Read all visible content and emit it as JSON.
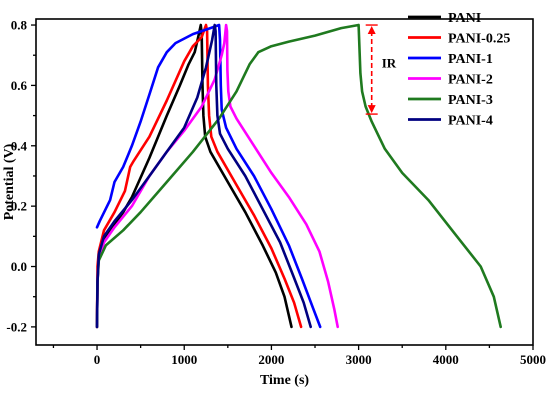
{
  "chart_data": {
    "type": "line",
    "title": "",
    "xlabel": "Time (s)",
    "ylabel": "Potential (V)",
    "xlim": [
      -700,
      5000
    ],
    "ylim": [
      -0.26,
      0.82
    ],
    "xticks": [
      0,
      1000,
      2000,
      3000,
      4000,
      5000
    ],
    "yticks": [
      -0.2,
      0.0,
      0.2,
      0.4,
      0.6,
      0.8
    ],
    "xtick_labels": [
      "0",
      "1000",
      "2000",
      "3000",
      "4000",
      "5000"
    ],
    "ytick_labels": [
      "-0.2",
      "0.0",
      "0.2",
      "0.4",
      "0.6",
      "0.8"
    ],
    "grid": false,
    "legend_position": "top-right",
    "series": [
      {
        "name": "PANI",
        "color": "#000000",
        "points": [
          [
            0,
            -0.2
          ],
          [
            5,
            -0.05
          ],
          [
            15,
            0.02
          ],
          [
            50,
            0.07
          ],
          [
            150,
            0.12
          ],
          [
            300,
            0.18
          ],
          [
            400,
            0.23
          ],
          [
            600,
            0.36
          ],
          [
            800,
            0.5
          ],
          [
            950,
            0.6
          ],
          [
            1050,
            0.67
          ],
          [
            1120,
            0.71
          ],
          [
            1160,
            0.76
          ],
          [
            1190,
            0.8
          ],
          [
            1200,
            0.77
          ],
          [
            1210,
            0.6
          ],
          [
            1220,
            0.5
          ],
          [
            1240,
            0.43
          ],
          [
            1300,
            0.38
          ],
          [
            1500,
            0.28
          ],
          [
            1700,
            0.18
          ],
          [
            1900,
            0.07
          ],
          [
            2050,
            -0.02
          ],
          [
            2150,
            -0.1
          ],
          [
            2230,
            -0.2
          ]
        ]
      },
      {
        "name": "PANI-0.25",
        "color": "#ff0000",
        "points": [
          [
            0,
            -0.2
          ],
          [
            5,
            0.0
          ],
          [
            20,
            0.05
          ],
          [
            80,
            0.12
          ],
          [
            200,
            0.18
          ],
          [
            320,
            0.25
          ],
          [
            380,
            0.33
          ],
          [
            420,
            0.35
          ],
          [
            600,
            0.43
          ],
          [
            800,
            0.55
          ],
          [
            1000,
            0.68
          ],
          [
            1100,
            0.73
          ],
          [
            1200,
            0.76
          ],
          [
            1250,
            0.8
          ],
          [
            1262,
            0.78
          ],
          [
            1272,
            0.6
          ],
          [
            1285,
            0.5
          ],
          [
            1310,
            0.43
          ],
          [
            1380,
            0.38
          ],
          [
            1600,
            0.27
          ],
          [
            1800,
            0.17
          ],
          [
            2000,
            0.06
          ],
          [
            2150,
            -0.04
          ],
          [
            2260,
            -0.12
          ],
          [
            2340,
            -0.2
          ]
        ]
      },
      {
        "name": "PANI-1",
        "color": "#0000ff",
        "points": [
          [
            0,
            0.13
          ],
          [
            30,
            0.15
          ],
          [
            150,
            0.22
          ],
          [
            200,
            0.28
          ],
          [
            300,
            0.33
          ],
          [
            400,
            0.4
          ],
          [
            500,
            0.48
          ],
          [
            600,
            0.57
          ],
          [
            700,
            0.66
          ],
          [
            800,
            0.71
          ],
          [
            900,
            0.74
          ],
          [
            1000,
            0.755
          ],
          [
            1100,
            0.77
          ],
          [
            1200,
            0.78
          ],
          [
            1300,
            0.79
          ],
          [
            1400,
            0.8
          ],
          [
            1410,
            0.75
          ],
          [
            1420,
            0.6
          ],
          [
            1430,
            0.52
          ],
          [
            1480,
            0.46
          ],
          [
            1600,
            0.39
          ],
          [
            1800,
            0.3
          ],
          [
            2000,
            0.19
          ],
          [
            2200,
            0.07
          ],
          [
            2350,
            -0.04
          ],
          [
            2480,
            -0.14
          ],
          [
            2560,
            -0.2
          ]
        ]
      },
      {
        "name": "PANI-2",
        "color": "#ff00ff",
        "points": [
          [
            0,
            -0.2
          ],
          [
            5,
            -0.05
          ],
          [
            20,
            0.03
          ],
          [
            80,
            0.08
          ],
          [
            200,
            0.13
          ],
          [
            400,
            0.2
          ],
          [
            600,
            0.3
          ],
          [
            800,
            0.38
          ],
          [
            1000,
            0.45
          ],
          [
            1200,
            0.53
          ],
          [
            1350,
            0.62
          ],
          [
            1430,
            0.7
          ],
          [
            1460,
            0.74
          ],
          [
            1480,
            0.8
          ],
          [
            1490,
            0.78
          ],
          [
            1495,
            0.65
          ],
          [
            1505,
            0.58
          ],
          [
            1530,
            0.53
          ],
          [
            1600,
            0.49
          ],
          [
            1800,
            0.4
          ],
          [
            2000,
            0.31
          ],
          [
            2200,
            0.23
          ],
          [
            2400,
            0.14
          ],
          [
            2550,
            0.05
          ],
          [
            2650,
            -0.05
          ],
          [
            2720,
            -0.14
          ],
          [
            2760,
            -0.2
          ]
        ]
      },
      {
        "name": "PANI-3",
        "color": "#1f7a1f",
        "points": [
          [
            0,
            -0.2
          ],
          [
            5,
            -0.05
          ],
          [
            20,
            0.02
          ],
          [
            100,
            0.07
          ],
          [
            300,
            0.12
          ],
          [
            500,
            0.18
          ],
          [
            800,
            0.28
          ],
          [
            1100,
            0.38
          ],
          [
            1400,
            0.49
          ],
          [
            1600,
            0.58
          ],
          [
            1750,
            0.67
          ],
          [
            1850,
            0.71
          ],
          [
            2000,
            0.73
          ],
          [
            2200,
            0.745
          ],
          [
            2500,
            0.765
          ],
          [
            2800,
            0.79
          ],
          [
            3000,
            0.8
          ],
          [
            3010,
            0.72
          ],
          [
            3020,
            0.64
          ],
          [
            3040,
            0.58
          ],
          [
            3080,
            0.53
          ],
          [
            3150,
            0.48
          ],
          [
            3300,
            0.39
          ],
          [
            3500,
            0.31
          ],
          [
            3800,
            0.22
          ],
          [
            4100,
            0.11
          ],
          [
            4400,
            0.0
          ],
          [
            4550,
            -0.1
          ],
          [
            4630,
            -0.2
          ]
        ]
      },
      {
        "name": "PANI-4",
        "color": "#000080",
        "points": [
          [
            0,
            -0.2
          ],
          [
            5,
            -0.05
          ],
          [
            20,
            0.04
          ],
          [
            80,
            0.1
          ],
          [
            200,
            0.15
          ],
          [
            400,
            0.22
          ],
          [
            600,
            0.3
          ],
          [
            800,
            0.38
          ],
          [
            1000,
            0.46
          ],
          [
            1150,
            0.56
          ],
          [
            1250,
            0.66
          ],
          [
            1320,
            0.75
          ],
          [
            1350,
            0.8
          ],
          [
            1360,
            0.78
          ],
          [
            1368,
            0.6
          ],
          [
            1380,
            0.5
          ],
          [
            1410,
            0.44
          ],
          [
            1500,
            0.39
          ],
          [
            1700,
            0.3
          ],
          [
            1900,
            0.19
          ],
          [
            2100,
            0.08
          ],
          [
            2250,
            -0.03
          ],
          [
            2370,
            -0.12
          ],
          [
            2450,
            -0.2
          ]
        ]
      }
    ],
    "annotation": {
      "label": "IR",
      "x": 3150,
      "y_top": 0.8,
      "y_bottom": 0.505,
      "color": "#ff0000"
    }
  }
}
